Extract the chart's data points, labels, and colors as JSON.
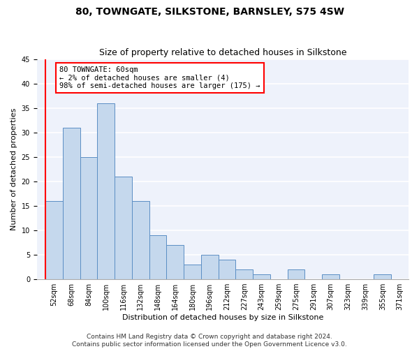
{
  "title": "80, TOWNGATE, SILKSTONE, BARNSLEY, S75 4SW",
  "subtitle": "Size of property relative to detached houses in Silkstone",
  "xlabel": "Distribution of detached houses by size in Silkstone",
  "ylabel": "Number of detached properties",
  "categories": [
    "52sqm",
    "68sqm",
    "84sqm",
    "100sqm",
    "116sqm",
    "132sqm",
    "148sqm",
    "164sqm",
    "180sqm",
    "196sqm",
    "212sqm",
    "227sqm",
    "243sqm",
    "259sqm",
    "275sqm",
    "291sqm",
    "307sqm",
    "323sqm",
    "339sqm",
    "355sqm",
    "371sqm"
  ],
  "values": [
    16,
    31,
    25,
    36,
    21,
    16,
    9,
    7,
    3,
    5,
    4,
    2,
    1,
    0,
    2,
    0,
    1,
    0,
    0,
    1,
    0
  ],
  "bar_color": "#c5d8ed",
  "bar_edge_color": "#5b8ec4",
  "annotation_text": "80 TOWNGATE: 60sqm\n← 2% of detached houses are smaller (4)\n98% of semi-detached houses are larger (175) →",
  "annotation_box_color": "white",
  "annotation_box_edge_color": "red",
  "vline_color": "red",
  "ylim": [
    0,
    45
  ],
  "yticks": [
    0,
    5,
    10,
    15,
    20,
    25,
    30,
    35,
    40,
    45
  ],
  "background_color": "#eef2fb",
  "grid_color": "white",
  "footer_line1": "Contains HM Land Registry data © Crown copyright and database right 2024.",
  "footer_line2": "Contains public sector information licensed under the Open Government Licence v3.0.",
  "title_fontsize": 10,
  "subtitle_fontsize": 9,
  "xlabel_fontsize": 8,
  "ylabel_fontsize": 8,
  "tick_fontsize": 7,
  "annotation_fontsize": 7.5,
  "footer_fontsize": 6.5
}
